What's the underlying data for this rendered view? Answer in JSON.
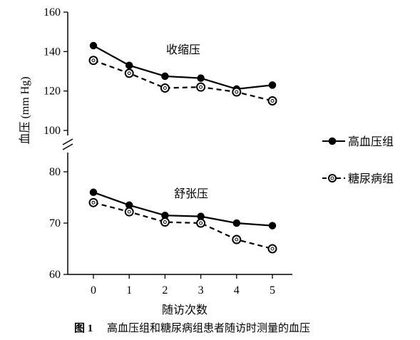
{
  "chart_data": [
    {
      "type": "line",
      "panel_label": "收缩压",
      "x": [
        0,
        1,
        2,
        3,
        4,
        5
      ],
      "ylim": [
        100,
        160
      ],
      "yticks": [
        100,
        120,
        140,
        160
      ],
      "series": [
        {
          "name": "高血压组",
          "values": [
            143,
            133,
            127.5,
            126.5,
            121,
            123
          ],
          "style": "solid",
          "marker": "filled-circle"
        },
        {
          "name": "糖尿病组",
          "values": [
            135.5,
            129,
            121.5,
            122,
            119.5,
            115
          ],
          "style": "dashed",
          "marker": "open-circle"
        }
      ]
    },
    {
      "type": "line",
      "panel_label": "舒张压",
      "x": [
        0,
        1,
        2,
        3,
        4,
        5
      ],
      "ylim": [
        60,
        80
      ],
      "yticks": [
        60,
        70,
        80
      ],
      "series": [
        {
          "name": "高血压组",
          "values": [
            76,
            73.5,
            71.5,
            71.3,
            70,
            69.5
          ],
          "style": "solid",
          "marker": "filled-circle"
        },
        {
          "name": "糖尿病组",
          "values": [
            74,
            72.2,
            70.2,
            70,
            66.8,
            65
          ],
          "style": "dashed",
          "marker": "open-circle"
        }
      ]
    }
  ],
  "axes": {
    "ylabel": "血压 (mm Hg)",
    "xlabel": "随访次数",
    "xticks": [
      "0",
      "1",
      "2",
      "3",
      "4",
      "5"
    ]
  },
  "legend": {
    "position": "right",
    "items": [
      {
        "label": "高血压组",
        "marker": "filled-circle",
        "line": "solid"
      },
      {
        "label": "糖尿病组",
        "marker": "open-circle",
        "line": "dashed"
      }
    ]
  },
  "caption": {
    "number": "图 1",
    "text": "高血压组和糖尿病组患者随访时测量的血压"
  },
  "colors": {
    "ink": "#000000",
    "background": "#ffffff"
  }
}
